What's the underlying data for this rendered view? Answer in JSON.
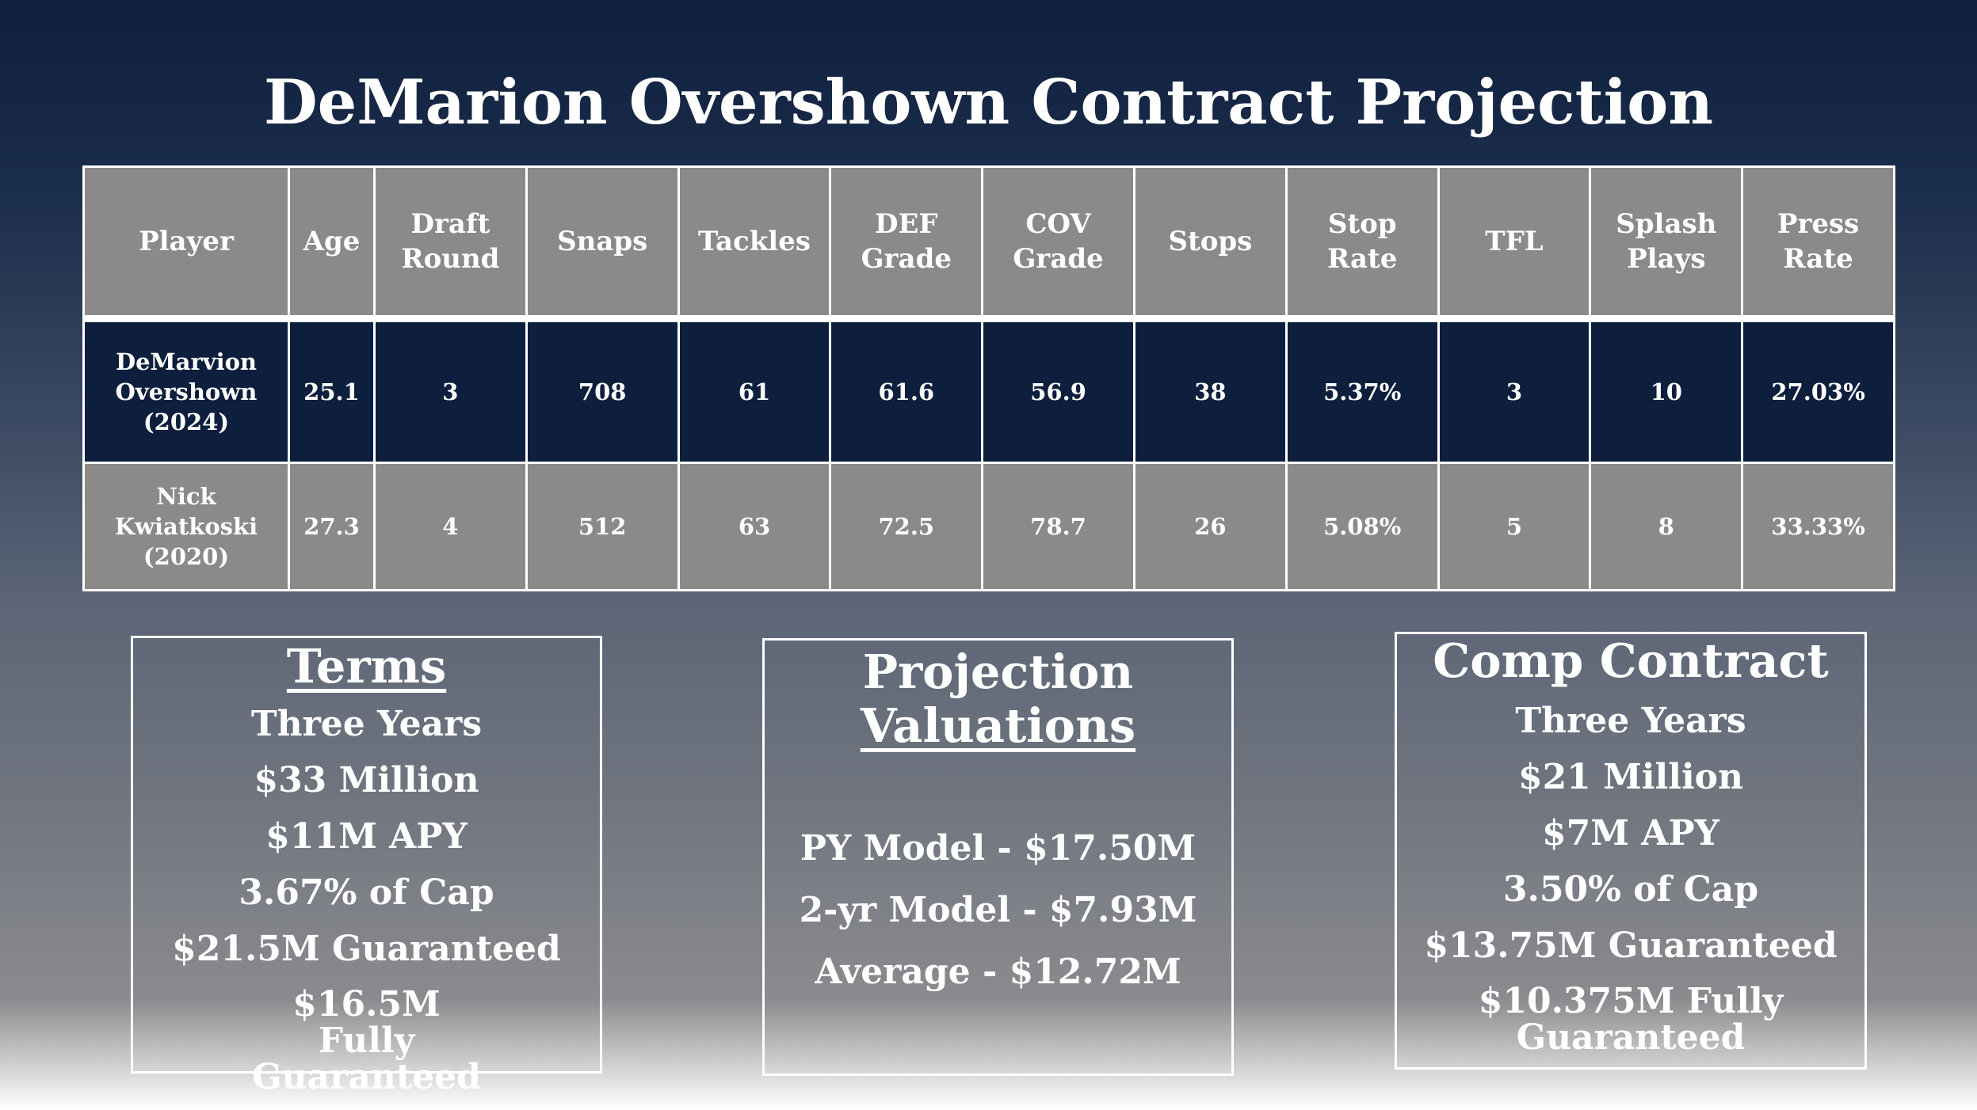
{
  "title": "DeMarion Overshown Contract Projection",
  "table": {
    "headers": [
      "Player",
      "Age",
      "Draft Round",
      "Snaps",
      "Tackles",
      "DEF Grade",
      "COV Grade",
      "Stops",
      "Stop Rate",
      "TFL",
      "Splash Plays",
      "Press Rate"
    ],
    "rows": [
      [
        "DeMarvion Overshown (2024)",
        "25.1",
        "3",
        "708",
        "61",
        "61.6",
        "56.9",
        "38",
        "5.37%",
        "3",
        "10",
        "27.03%"
      ],
      [
        "Nick Kwiatkoski (2020)",
        "27.3",
        "4",
        "512",
        "63",
        "72.5",
        "78.7",
        "26",
        "5.08%",
        "5",
        "8",
        "33.33%"
      ]
    ]
  },
  "terms": {
    "heading": "Terms",
    "lines": [
      "Three Years",
      "$33 Million",
      "$11M APY",
      "3.67% of Cap",
      "$21.5M Guaranteed",
      "$16.5M Fully Guaranteed"
    ]
  },
  "projection": {
    "heading_line1": "Projection",
    "heading_line2": "Valuations",
    "lines": [
      "PY Model - $17.50M",
      "2-yr Model - $7.93M",
      "Average - $12.72M"
    ]
  },
  "comp": {
    "heading": "Comp Contract",
    "lines": [
      "Three Years",
      "$21 Million",
      "$7M APY",
      "3.50% of Cap",
      "$13.75M Guaranteed",
      "$10.375M Fully Guaranteed"
    ]
  },
  "colors": {
    "navy": "#0e1f3e",
    "gray": "#8c8a89",
    "white": "#ffffff"
  }
}
